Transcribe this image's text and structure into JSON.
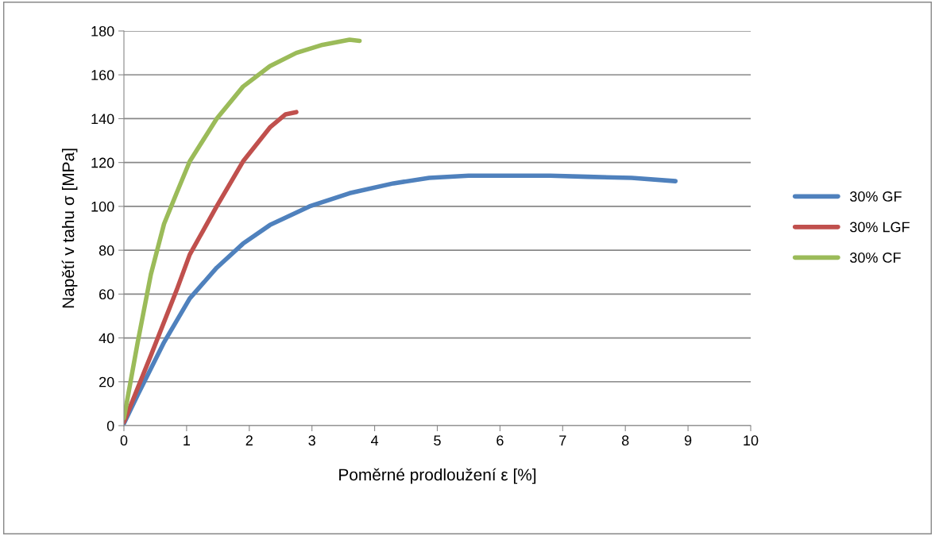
{
  "chart_data": {
    "type": "line",
    "xlabel": "Poměrné prodloužení ε [%]",
    "ylabel": "Napětí v tahu σ [MPa]",
    "xlim": [
      0,
      10
    ],
    "xticks": [
      0,
      1,
      2,
      3,
      4,
      5,
      6,
      7,
      8,
      9,
      10
    ],
    "ylim": [
      0,
      180
    ],
    "yticks": [
      0,
      20,
      40,
      60,
      80,
      100,
      120,
      140,
      160,
      180
    ],
    "grid": "y",
    "legend": "right",
    "marker": "none",
    "line_style": "solid",
    "series": [
      {
        "name": "30% GF",
        "color": "#4f81bd",
        "x": [
          0,
          0.22,
          0.64,
          1.05,
          1.48,
          1.9,
          2.33,
          2.96,
          3.6,
          4.3,
          4.87,
          5.5,
          6.13,
          6.8,
          7.4,
          8.1,
          8.8
        ],
        "values": [
          1,
          14,
          38,
          58,
          72,
          83,
          91.5,
          100,
          106,
          110.5,
          113,
          114,
          114,
          114,
          113.5,
          113,
          111.5
        ]
      },
      {
        "name": "30% LGF",
        "color": "#c0504d",
        "x": [
          0,
          0.43,
          0.85,
          1.05,
          1.48,
          1.9,
          2.33,
          2.58,
          2.75
        ],
        "values": [
          1.6,
          32,
          62.5,
          78,
          100,
          120.5,
          136,
          142,
          143
        ]
      },
      {
        "name": "30% CF",
        "color": "#9bbb59",
        "x": [
          0,
          0.22,
          0.43,
          0.64,
          0.84,
          1.05,
          1.48,
          1.9,
          2.33,
          2.75,
          3.17,
          3.6,
          3.76
        ],
        "values": [
          3.4,
          38,
          69,
          92,
          106,
          120.5,
          140,
          154.6,
          164,
          170,
          173.7,
          176,
          175.5
        ]
      }
    ]
  }
}
